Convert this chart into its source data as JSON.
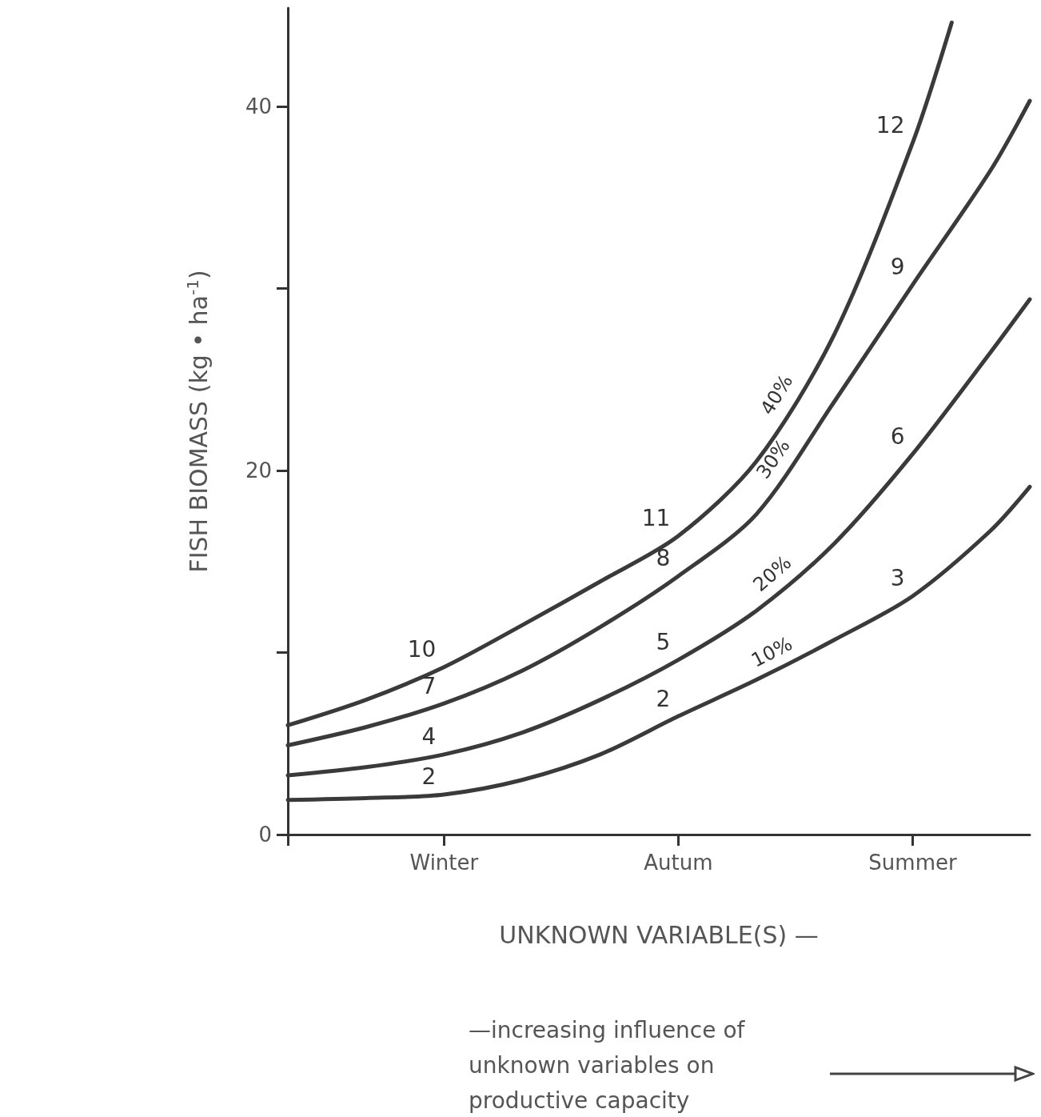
{
  "chart_data": {
    "type": "line",
    "xlabel": "UNKNOWN VARIABLE(S) —",
    "ylabel": "FISH BIOMASS (kg • ha$^{-1}$)",
    "categories": [
      null,
      null,
      null,
      null,
      "Winter",
      null,
      null,
      null,
      null,
      null,
      "Autum",
      null,
      null,
      null,
      null,
      null,
      "Summer",
      null,
      null,
      null
    ],
    "ylim": [
      0,
      45.4
    ],
    "yticks": [
      0,
      {
        "value": 10,
        "label": null
      },
      20,
      {
        "value": 30,
        "label": null
      },
      40
    ],
    "grid": false,
    "legend": false,
    "marker": "none",
    "line_style": "solid",
    "series": [
      {
        "name": "10%",
        "color": "#3a3a3a",
        "values": [
          1.9,
          null,
          2.0,
          null,
          2.2,
          null,
          3.0,
          null,
          4.4,
          null,
          6.5,
          null,
          8.5,
          null,
          10.7,
          null,
          13.1,
          null,
          16.7,
          19.1
        ]
      },
      {
        "name": "20%",
        "color": "#3a3a3a",
        "values": [
          3.25,
          null,
          3.7,
          null,
          4.4,
          null,
          5.6,
          null,
          7.4,
          null,
          9.6,
          null,
          12.3,
          null,
          16,
          null,
          20.9,
          null,
          26.5,
          29.4
        ]
      },
      {
        "name": "30%",
        "color": "#3a3a3a",
        "values": [
          4.9,
          null,
          5.9,
          null,
          7.2,
          null,
          9,
          null,
          11.4,
          null,
          14.2,
          null,
          17.6,
          null,
          23.8,
          null,
          30.2,
          null,
          36.5,
          40.3
        ]
      },
      {
        "name": "40%",
        "color": "#3a3a3a",
        "values": [
          6,
          null,
          7.4,
          null,
          9.2,
          null,
          11.5,
          null,
          13.9,
          null,
          16.4,
          null,
          20.5,
          null,
          27.5,
          null,
          38,
          44.6,
          null,
          null
        ]
      }
    ],
    "annotations": [
      {
        "text": "2",
        "x": "Winter",
        "y": 2.2
      },
      {
        "text": "2",
        "x": "Autum",
        "y": 6.5
      },
      {
        "text": "3",
        "x": "Summer",
        "y": 13.1
      },
      {
        "text": "4",
        "x": "Winter",
        "y": 4.4
      },
      {
        "text": "5",
        "x": "Autum",
        "y": 9.6
      },
      {
        "text": "6",
        "x": "Summer",
        "y": 20.9
      },
      {
        "text": "7",
        "x": "Winter",
        "y": 7.2
      },
      {
        "text": "8",
        "x": "Autum",
        "y": 14.2
      },
      {
        "text": "9",
        "x": "Summer",
        "y": 30.2
      },
      {
        "text": "10",
        "x": "Winter",
        "y": 9.2
      },
      {
        "text": "11",
        "x": "Autum",
        "y": 16.4
      },
      {
        "text": "12",
        "x": "Summer",
        "y": 38
      },
      "—increasing influence of unknown variables on productive capacity"
    ]
  }
}
